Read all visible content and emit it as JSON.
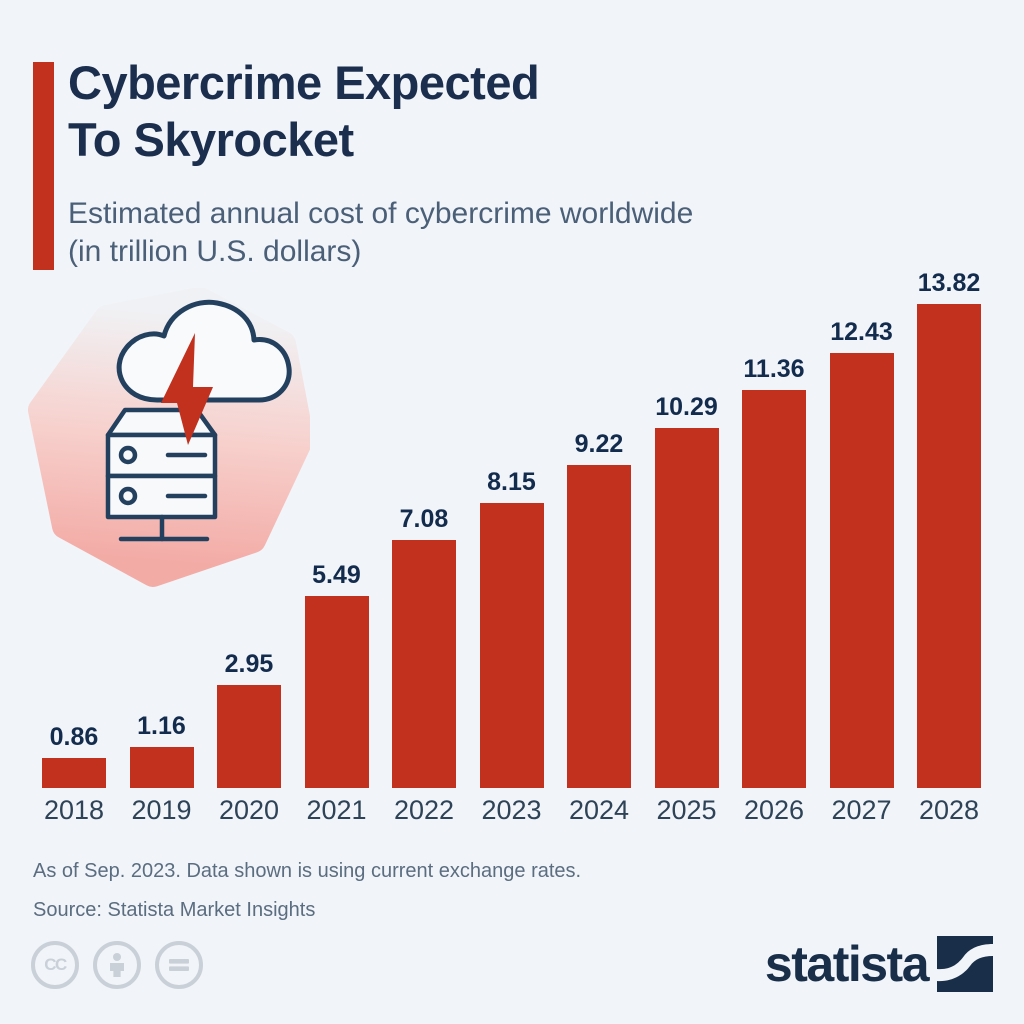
{
  "header": {
    "title_line1": "Cybercrime Expected",
    "title_line2": "To Skyrocket",
    "subtitle_line1": "Estimated annual cost of cybercrime worldwide",
    "subtitle_line2": "(in trillion U.S. dollars)"
  },
  "chart_data": {
    "type": "bar",
    "categories": [
      "2018",
      "2019",
      "2020",
      "2021",
      "2022",
      "2023",
      "2024",
      "2025",
      "2026",
      "2027",
      "2028"
    ],
    "values": [
      0.86,
      1.16,
      2.95,
      5.49,
      7.08,
      8.15,
      9.22,
      10.29,
      11.36,
      12.43,
      13.82
    ],
    "title": "Cybercrime Expected To Skyrocket",
    "subtitle": "Estimated annual cost of cybercrime worldwide (in trillion U.S. dollars)",
    "xlabel": "",
    "ylabel": "",
    "ylim": [
      0,
      14
    ],
    "bar_color": "#c2301e",
    "grid": false,
    "legend": "none",
    "value_labels": "above bars, two decimals"
  },
  "hero_icon": {
    "name": "cloud-lightning-server-icon",
    "blob_top_color": "#f0f1f4",
    "blob_bottom_color": "#f3aba6",
    "outline_color": "#23405f",
    "bolt_color": "#c2301e"
  },
  "footer": {
    "note": "As of Sep. 2023. Data shown is using current exchange rates.",
    "source": "Source: Statista Market Insights"
  },
  "license": {
    "cc_label": "CC",
    "icons": [
      "cc-icon",
      "attribution-person-icon",
      "no-derivatives-equals-icon"
    ]
  },
  "branding": {
    "logo_text": "statista"
  },
  "colors": {
    "background": "#f1f4f8",
    "bar_red": "#c2301e",
    "title_navy": "#1b2e4d",
    "subtitle_slate": "#4b6078",
    "value_label": "#132c4d",
    "year_label": "#2e4357",
    "footer_gray": "#5b6d80",
    "cc_gray": "#c9d0d8",
    "logo_navy": "#192e49"
  }
}
